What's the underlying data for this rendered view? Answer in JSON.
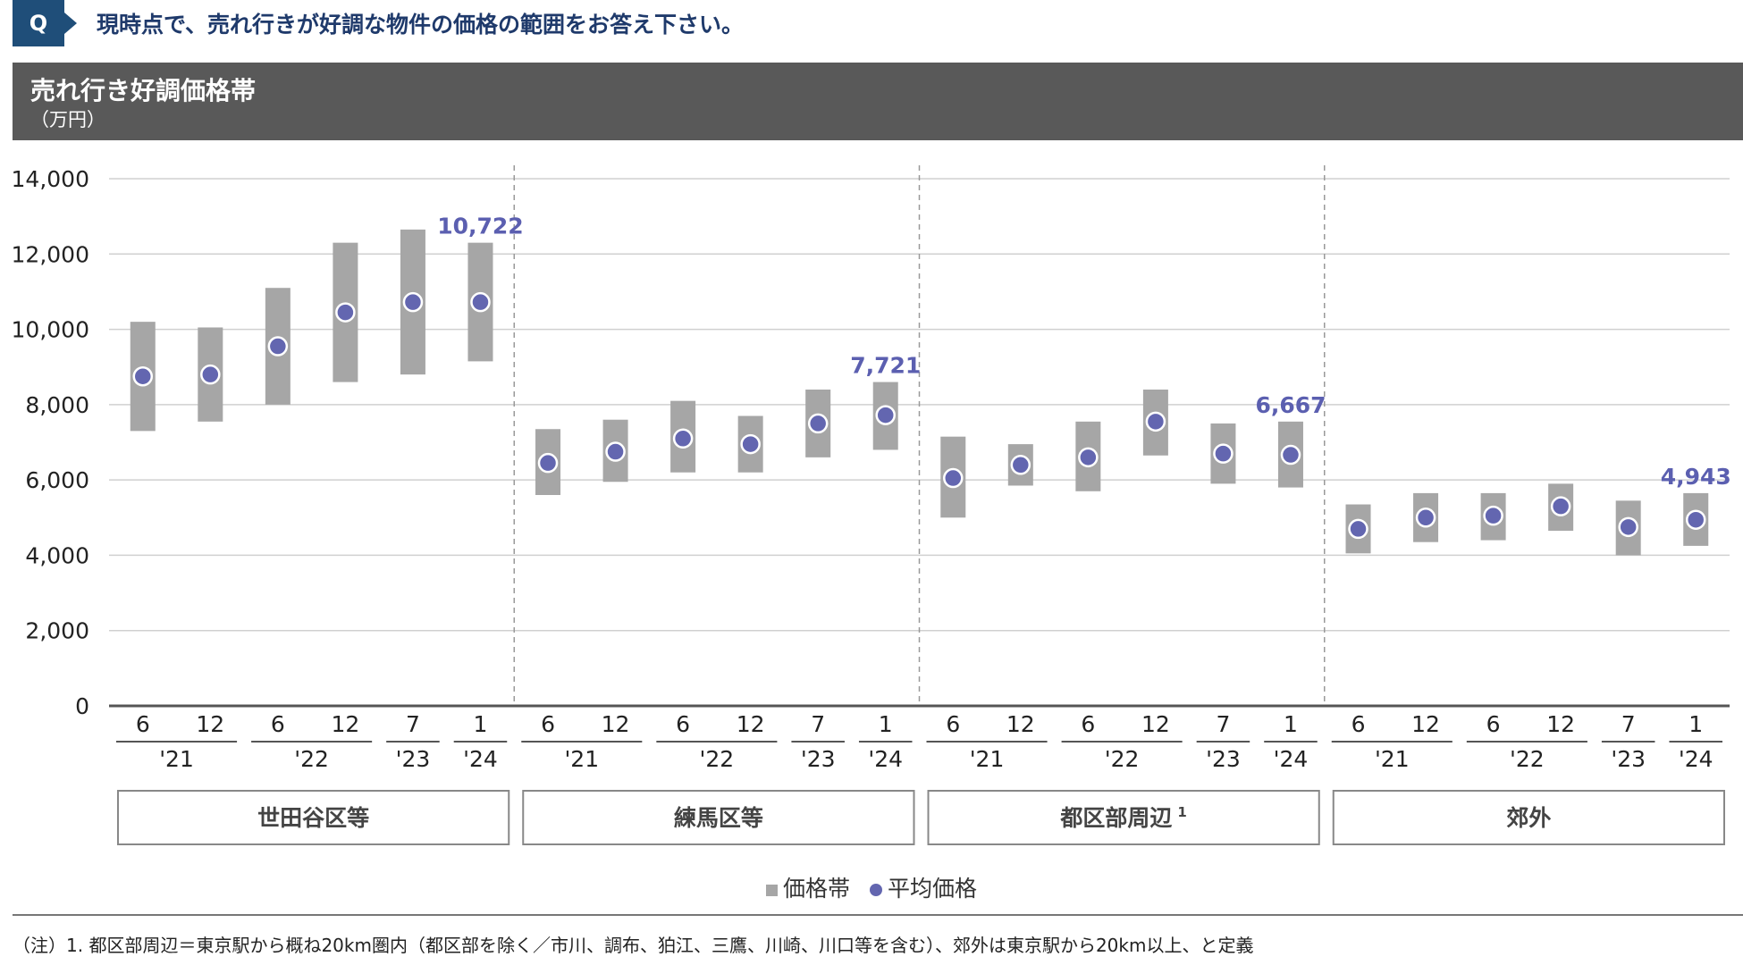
{
  "question": {
    "badge": "Q",
    "text": "現時点で、売れ行きが好調な物件の価格の範囲をお答え下さい。"
  },
  "header": {
    "title": "売れ行き好調価格帯",
    "unit": "（万円）"
  },
  "chart_data": {
    "type": "range-with-dot",
    "ylim": [
      0,
      14000
    ],
    "yticks": [
      "0",
      "2,000",
      "4,000",
      "6,000",
      "8,000",
      "10,000",
      "12,000",
      "14,000"
    ],
    "period_labels": [
      "6",
      "12",
      "6",
      "12",
      "7",
      "1"
    ],
    "year_groups": [
      {
        "label": "'21",
        "span": 2
      },
      {
        "label": "'22",
        "span": 2
      },
      {
        "label": "'23",
        "span": 1
      },
      {
        "label": "'24",
        "span": 1
      }
    ],
    "series": [
      {
        "name": "価格帯"
      },
      {
        "name": "平均価格"
      }
    ],
    "colors": {
      "band": "#a6a6a6",
      "avg": "#6366b0",
      "label": "#5b5fb0"
    },
    "groups": [
      {
        "name": "世田谷区等",
        "superscript": "",
        "last_label": "10,722",
        "low": [
          7300,
          7550,
          8000,
          8600,
          8800,
          9150
        ],
        "high": [
          10200,
          10050,
          11100,
          12300,
          12650,
          12300
        ],
        "avg": [
          8750,
          8800,
          9550,
          10450,
          10722,
          10722
        ]
      },
      {
        "name": "練馬区等",
        "superscript": "",
        "last_label": "7,721",
        "low": [
          5600,
          5950,
          6200,
          6200,
          6600,
          6800
        ],
        "high": [
          7350,
          7600,
          8100,
          7700,
          8400,
          8600
        ],
        "avg": [
          6450,
          6750,
          7100,
          6950,
          7500,
          7721
        ]
      },
      {
        "name": "都区部周辺",
        "superscript": "1",
        "last_label": "6,667",
        "low": [
          5000,
          5850,
          5700,
          6650,
          5900,
          5800
        ],
        "high": [
          7150,
          6950,
          7550,
          8400,
          7500,
          7550
        ],
        "avg": [
          6050,
          6400,
          6600,
          7550,
          6700,
          6667
        ]
      },
      {
        "name": "郊外",
        "superscript": "",
        "last_label": "4,943",
        "low": [
          4050,
          4350,
          4400,
          4650,
          4000,
          4250
        ],
        "high": [
          5350,
          5650,
          5650,
          5900,
          5450,
          5650
        ],
        "avg": [
          4700,
          5000,
          5050,
          5300,
          4750,
          4943
        ]
      }
    ]
  },
  "legend": {
    "band": "価格帯",
    "avg": "平均価格"
  },
  "footnote": "（注）1.  都区部周辺＝東京駅から概ね20km圏内（都区部を除く／市川、調布、狛江、三鷹、川崎、川口等を含む）、郊外は東京駅から20km以上、と定義"
}
